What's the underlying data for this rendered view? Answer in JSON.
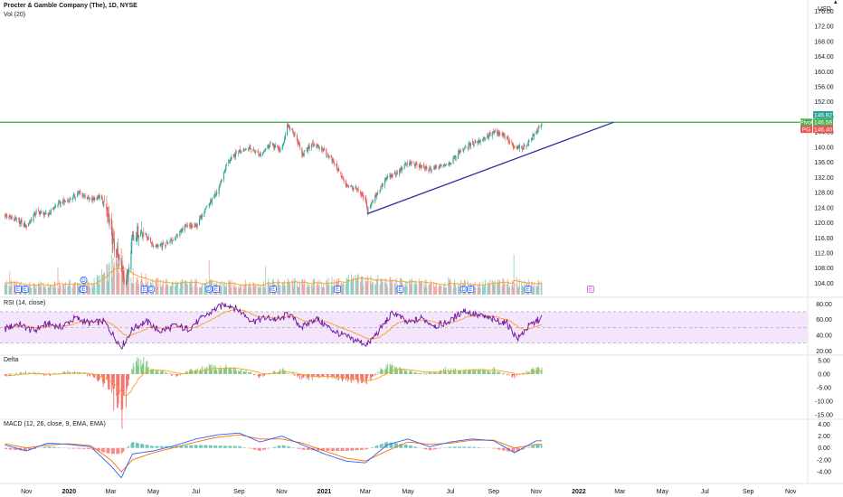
{
  "header": {
    "title": "Procter & Gamble Company (The), 1D, NYSE",
    "volume_label": "Vol (20)",
    "currency": "USD"
  },
  "colors": {
    "up": "#26a69a",
    "down": "#ef5350",
    "resistance": "#4caf50",
    "support": "#2a2e9e",
    "ema": "#f7a21b",
    "rsi": "#7b1fa2",
    "rsi_band": "#f3e5fb",
    "macd": "#2962ff",
    "signal": "#ff6d00",
    "event_dividend": "#2962ff",
    "event_earnings": "#2962ff",
    "event_split": "#e040fb"
  },
  "tags": [
    {
      "text": "146.92",
      "color": "#26a69a"
    },
    {
      "text": "146.59",
      "color": "#4caf50",
      "prefix": "Pivot"
    },
    {
      "text": "146.40",
      "color": "#ef5350",
      "prefix": "PG"
    }
  ],
  "events": [
    {
      "date": "2019-10-20",
      "label": "E"
    },
    {
      "date": "2019-10-30",
      "label": "E"
    },
    {
      "date": "2020-01-20",
      "label": "D"
    },
    {
      "date": "2020-01-22",
      "label": "E"
    },
    {
      "date": "2020-04-18",
      "label": "E"
    },
    {
      "date": "2020-04-28",
      "label": "D"
    },
    {
      "date": "2020-07-20",
      "label": "D"
    },
    {
      "date": "2020-07-30",
      "label": "E"
    },
    {
      "date": "2020-10-20",
      "label": "E"
    },
    {
      "date": "2021-01-20",
      "label": "E"
    },
    {
      "date": "2021-04-20",
      "label": "E"
    },
    {
      "date": "2021-07-20",
      "label": "D"
    },
    {
      "date": "2021-07-30",
      "label": "E"
    },
    {
      "date": "2021-10-20",
      "label": "E"
    },
    {
      "date": "2022-01-18",
      "label": "E",
      "future": true
    }
  ],
  "chart_data": [
    {
      "type": "line",
      "title": "Procter & Gamble Company (The), 1D, NYSE",
      "ylabel": "USD",
      "ylim": [
        101,
        178
      ],
      "x_ticks": [
        "Nov",
        "2020",
        "Mar",
        "May",
        "Jul",
        "Sep",
        "Nov",
        "2021",
        "Mar",
        "May",
        "Jul",
        "Sep",
        "Nov",
        "2022",
        "Mar",
        "May",
        "Jul",
        "Sep",
        "Nov"
      ],
      "y_ticks": [
        104,
        108,
        112,
        116,
        120,
        124,
        128,
        132,
        136,
        140,
        144,
        148,
        152,
        156,
        160,
        164,
        168,
        172,
        176
      ],
      "series": [
        {
          "x": [
            "2019-10-01",
            "2019-10-15",
            "2019-11-01",
            "2019-11-15",
            "2019-12-01",
            "2019-12-15",
            "2020-01-01",
            "2020-01-15",
            "2020-02-01",
            "2020-02-15",
            "2020-02-24",
            "2020-03-05",
            "2020-03-16",
            "2020-03-23",
            "2020-04-01",
            "2020-04-15",
            "2020-05-01",
            "2020-05-15",
            "2020-06-01",
            "2020-06-15",
            "2020-07-01",
            "2020-07-15",
            "2020-08-01",
            "2020-08-15",
            "2020-09-01",
            "2020-09-15",
            "2020-10-01",
            "2020-10-15",
            "2020-11-01",
            "2020-11-09",
            "2020-11-20",
            "2020-12-01",
            "2020-12-15",
            "2021-01-01",
            "2021-01-15",
            "2021-02-01",
            "2021-02-15",
            "2021-03-01",
            "2021-03-04",
            "2021-03-15",
            "2021-04-01",
            "2021-04-15",
            "2021-05-01",
            "2021-05-15",
            "2021-06-01",
            "2021-06-15",
            "2021-07-01",
            "2021-07-15",
            "2021-08-01",
            "2021-08-15",
            "2021-09-01",
            "2021-09-15",
            "2021-10-01",
            "2021-10-15",
            "2021-11-01",
            "2021-11-09"
          ],
          "values": [
            122,
            121,
            119,
            123,
            122,
            125,
            126,
            128,
            126,
            127,
            123,
            114,
            108,
            104,
            117,
            118,
            114,
            114,
            116,
            119,
            119,
            124,
            128,
            136,
            139,
            140,
            138,
            141,
            139,
            146,
            143,
            138,
            141,
            139,
            136,
            130,
            129,
            126,
            123,
            127,
            132,
            133,
            136,
            135,
            134,
            135,
            136,
            139,
            141,
            142,
            144,
            143,
            140,
            140,
            144,
            146.5
          ]
        }
      ],
      "annotations": [
        {
          "type": "hline",
          "name": "resistance",
          "y": 146.6
        },
        {
          "type": "trendline",
          "name": "support",
          "from": [
            "2021-03-04",
            122.4
          ],
          "to": [
            "2022-02-20",
            146.6
          ]
        }
      ]
    },
    {
      "type": "bar",
      "title": "Vol (20)",
      "note": "volume histogram with 20-day moving average, unitless scale",
      "x": [
        "2019-10-01",
        "2019-11-01",
        "2019-12-01",
        "2020-01-01",
        "2020-02-01",
        "2020-03-01",
        "2020-03-16",
        "2020-04-01",
        "2020-05-01",
        "2020-06-01",
        "2020-07-01",
        "2020-08-01",
        "2020-09-01",
        "2020-10-01",
        "2020-11-01",
        "2020-12-01",
        "2021-01-01",
        "2021-02-01",
        "2021-03-01",
        "2021-04-01",
        "2021-05-01",
        "2021-06-01",
        "2021-07-01",
        "2021-08-01",
        "2021-09-01",
        "2021-10-01",
        "2021-11-01"
      ],
      "values": [
        0.35,
        0.3,
        0.28,
        0.35,
        0.33,
        0.8,
        1.0,
        0.6,
        0.4,
        0.35,
        0.38,
        0.35,
        0.33,
        0.35,
        0.4,
        0.36,
        0.38,
        0.45,
        0.5,
        0.42,
        0.38,
        0.35,
        0.36,
        0.33,
        0.36,
        0.4,
        0.34
      ]
    },
    {
      "type": "line",
      "title": "RSI (14, close)",
      "ylim": [
        18,
        85
      ],
      "y_ticks": [
        20,
        40,
        60,
        80
      ],
      "bands": {
        "upper": 70,
        "middle": 50,
        "lower": 30
      },
      "series": [
        {
          "name": "RSI",
          "x": [
            "2019-10-01",
            "2019-10-20",
            "2019-11-10",
            "2019-12-01",
            "2019-12-20",
            "2020-01-10",
            "2020-02-01",
            "2020-02-20",
            "2020-03-05",
            "2020-03-16",
            "2020-04-01",
            "2020-04-20",
            "2020-05-10",
            "2020-06-01",
            "2020-06-20",
            "2020-07-10",
            "2020-08-01",
            "2020-08-15",
            "2020-09-01",
            "2020-09-20",
            "2020-10-10",
            "2020-11-01",
            "2020-11-09",
            "2020-12-01",
            "2020-12-20",
            "2021-01-10",
            "2021-02-01",
            "2021-02-20",
            "2021-03-04",
            "2021-03-20",
            "2021-04-10",
            "2021-05-01",
            "2021-05-20",
            "2021-06-10",
            "2021-07-01",
            "2021-07-20",
            "2021-08-10",
            "2021-09-01",
            "2021-09-20",
            "2021-10-05",
            "2021-10-20",
            "2021-11-09"
          ],
          "values": [
            48,
            55,
            45,
            55,
            50,
            62,
            55,
            58,
            40,
            25,
            48,
            58,
            45,
            52,
            48,
            62,
            75,
            80,
            72,
            58,
            62,
            60,
            68,
            50,
            62,
            48,
            38,
            32,
            28,
            45,
            70,
            55,
            62,
            52,
            58,
            72,
            65,
            60,
            55,
            35,
            50,
            63
          ]
        }
      ]
    },
    {
      "type": "bar",
      "title": "Delta",
      "ylim": [
        -16,
        6
      ],
      "y_ticks": [
        5.0,
        0.0,
        -5.0,
        -10.0,
        -15.0
      ],
      "x": [
        "2019-10-01",
        "2019-11-01",
        "2019-12-01",
        "2020-01-01",
        "2020-02-01",
        "2020-02-24",
        "2020-03-05",
        "2020-03-16",
        "2020-03-23",
        "2020-04-01",
        "2020-04-15",
        "2020-05-01",
        "2020-06-01",
        "2020-07-01",
        "2020-08-01",
        "2020-09-01",
        "2020-10-01",
        "2020-11-01",
        "2020-12-01",
        "2021-01-01",
        "2021-02-01",
        "2021-03-01",
        "2021-04-01",
        "2021-05-01",
        "2021-06-01",
        "2021-07-01",
        "2021-08-01",
        "2021-09-01",
        "2021-10-01",
        "2021-11-01"
      ],
      "values": [
        -0.5,
        0.6,
        -0.3,
        0.8,
        -0.4,
        -4,
        -9,
        -15,
        -8,
        3,
        5,
        1.5,
        -0.5,
        1.5,
        3,
        2,
        -1,
        1.5,
        -1.5,
        -0.8,
        -2,
        -3,
        3,
        1,
        0.5,
        1.8,
        1.2,
        1.5,
        -1,
        2
      ]
    },
    {
      "type": "line",
      "title": "MACD (12, 26, close, 9, EMA, EMA)",
      "ylim": [
        -5.5,
        4.5
      ],
      "y_ticks": [
        4.0,
        2.0,
        0.0,
        -2.0,
        -4.0
      ],
      "series": [
        {
          "name": "MACD",
          "x": [
            "2019-10-01",
            "2019-11-01",
            "2019-12-01",
            "2020-01-01",
            "2020-02-01",
            "2020-03-01",
            "2020-03-16",
            "2020-04-01",
            "2020-05-01",
            "2020-06-01",
            "2020-07-01",
            "2020-08-01",
            "2020-09-01",
            "2020-10-01",
            "2020-11-01",
            "2020-12-01",
            "2021-01-01",
            "2021-02-01",
            "2021-03-01",
            "2021-04-01",
            "2021-05-01",
            "2021-06-01",
            "2021-07-01",
            "2021-08-01",
            "2021-09-01",
            "2021-10-01",
            "2021-11-01"
          ],
          "values": [
            0.5,
            -0.5,
            0.8,
            0.6,
            0.2,
            -3,
            -5,
            -1,
            -0.5,
            0.4,
            1.5,
            2.2,
            2.5,
            1,
            2,
            0.5,
            -1,
            -2.2,
            -2.5,
            0.5,
            1.5,
            0.2,
            1,
            1.5,
            1.2,
            -0.8,
            1.2
          ]
        },
        {
          "name": "Signal",
          "x": [
            "2019-10-01",
            "2019-11-01",
            "2019-12-01",
            "2020-01-01",
            "2020-02-01",
            "2020-03-01",
            "2020-03-16",
            "2020-04-01",
            "2020-05-01",
            "2020-06-01",
            "2020-07-01",
            "2020-08-01",
            "2020-09-01",
            "2020-10-01",
            "2020-11-01",
            "2020-12-01",
            "2021-01-01",
            "2021-02-01",
            "2021-03-01",
            "2021-04-01",
            "2021-05-01",
            "2021-06-01",
            "2021-07-01",
            "2021-08-01",
            "2021-09-01",
            "2021-10-01",
            "2021-11-01"
          ],
          "values": [
            0.7,
            0,
            0.5,
            0.7,
            0.4,
            -2,
            -4,
            -2,
            -0.8,
            0.1,
            1,
            1.8,
            2.2,
            1.5,
            1.5,
            0.8,
            -0.5,
            -1.7,
            -2.2,
            -0.5,
            1,
            0.6,
            0.8,
            1.3,
            1.3,
            0,
            0.6
          ]
        }
      ]
    }
  ]
}
